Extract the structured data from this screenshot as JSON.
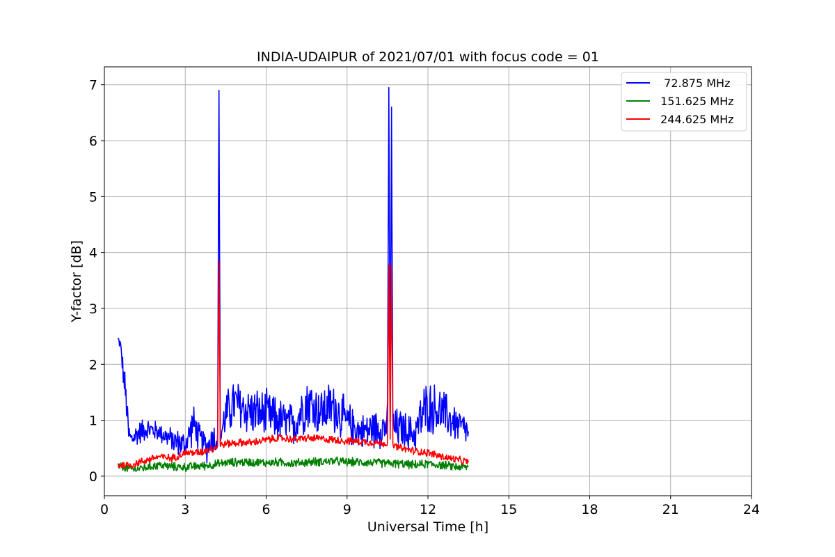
{
  "chart_data": {
    "type": "line",
    "title": "INDIA-UDAIPUR of 2021/07/01 with focus code = 01",
    "xlabel": "Universal Time [h]",
    "ylabel": "Y-factor [dB]",
    "xlim": [
      0,
      24
    ],
    "ylim": [
      -0.35,
      7.32
    ],
    "xticks": [
      "0",
      "3",
      "6",
      "9",
      "12",
      "15",
      "18",
      "21",
      "24"
    ],
    "yticks": [
      "0",
      "1",
      "2",
      "3",
      "4",
      "5",
      "6",
      "7"
    ],
    "grid": true,
    "legend_position": "top-right",
    "series": [
      {
        "name": "72.875 MHz",
        "label": "  72.875 MHz",
        "color": "#0000ff",
        "x": [
          0.5,
          0.6,
          0.7,
          0.8,
          0.9,
          1.0,
          1.2,
          1.5,
          2.0,
          2.5,
          3.0,
          3.3,
          3.5,
          3.8,
          4.0,
          4.2,
          4.25,
          4.3,
          4.5,
          4.8,
          5.0,
          5.5,
          6.0,
          6.5,
          7.0,
          7.5,
          8.0,
          8.5,
          9.0,
          9.5,
          10.0,
          10.5,
          10.55,
          10.6,
          10.65,
          10.7,
          11.0,
          11.5,
          11.8,
          12.0,
          12.5,
          13.0,
          13.5
        ],
        "y": [
          2.45,
          2.35,
          1.85,
          1.4,
          0.75,
          0.65,
          0.75,
          0.85,
          0.8,
          0.65,
          0.55,
          0.95,
          0.7,
          0.5,
          0.7,
          0.65,
          6.9,
          0.7,
          1.1,
          1.3,
          1.25,
          1.15,
          1.1,
          1.0,
          0.9,
          1.35,
          1.15,
          1.25,
          0.95,
          0.8,
          0.85,
          0.9,
          6.95,
          0.9,
          6.6,
          0.85,
          0.85,
          0.75,
          1.1,
          1.25,
          1.15,
          0.95,
          0.8
        ],
        "noise_amplitude": [
          0.1,
          0.1,
          0.3,
          0.4,
          0.3,
          0.25,
          0.25,
          0.25,
          0.2,
          0.25,
          0.3,
          0.4,
          0.3,
          0.3,
          0.35,
          0.3,
          0,
          0.35,
          0.45,
          0.55,
          0.55,
          0.5,
          0.5,
          0.45,
          0.45,
          0.6,
          0.5,
          0.55,
          0.45,
          0.35,
          0.4,
          0.45,
          0,
          0.45,
          0,
          0.45,
          0.4,
          0.35,
          0.6,
          0.55,
          0.5,
          0.4,
          0.3
        ]
      },
      {
        "name": "151.625 MHz",
        "label": " 151.625 MHz",
        "color": "#008000",
        "x": [
          0.5,
          1.0,
          1.5,
          2.0,
          2.5,
          3.0,
          3.5,
          4.0,
          4.5,
          5.0,
          5.5,
          6.0,
          6.5,
          7.0,
          7.5,
          8.0,
          8.5,
          9.0,
          9.5,
          10.0,
          10.5,
          11.0,
          11.5,
          12.0,
          12.5,
          13.0,
          13.5
        ],
        "y": [
          0.18,
          0.12,
          0.15,
          0.2,
          0.17,
          0.16,
          0.18,
          0.2,
          0.24,
          0.25,
          0.25,
          0.24,
          0.25,
          0.23,
          0.25,
          0.26,
          0.27,
          0.25,
          0.25,
          0.24,
          0.23,
          0.22,
          0.2,
          0.22,
          0.2,
          0.17,
          0.16
        ],
        "noise_amplitude": 0.09
      },
      {
        "name": "244.625 MHz",
        "label": " 244.625 MHz",
        "color": "#ff0000",
        "x": [
          0.5,
          1.0,
          1.5,
          2.0,
          2.5,
          3.0,
          3.5,
          4.0,
          4.2,
          4.25,
          4.3,
          4.5,
          5.0,
          5.5,
          6.0,
          6.5,
          7.0,
          7.5,
          8.0,
          8.5,
          9.0,
          9.5,
          10.0,
          10.5,
          10.55,
          10.6,
          10.65,
          10.7,
          11.0,
          11.5,
          12.0,
          12.5,
          13.0,
          13.5
        ],
        "y": [
          0.2,
          0.2,
          0.28,
          0.35,
          0.32,
          0.42,
          0.42,
          0.5,
          0.52,
          3.85,
          0.55,
          0.58,
          0.6,
          0.6,
          0.65,
          0.68,
          0.66,
          0.68,
          0.67,
          0.65,
          0.63,
          0.62,
          0.6,
          0.58,
          3.8,
          0.6,
          3.8,
          0.55,
          0.5,
          0.45,
          0.42,
          0.35,
          0.3,
          0.25
        ],
        "noise_amplitude": 0.08
      }
    ]
  }
}
